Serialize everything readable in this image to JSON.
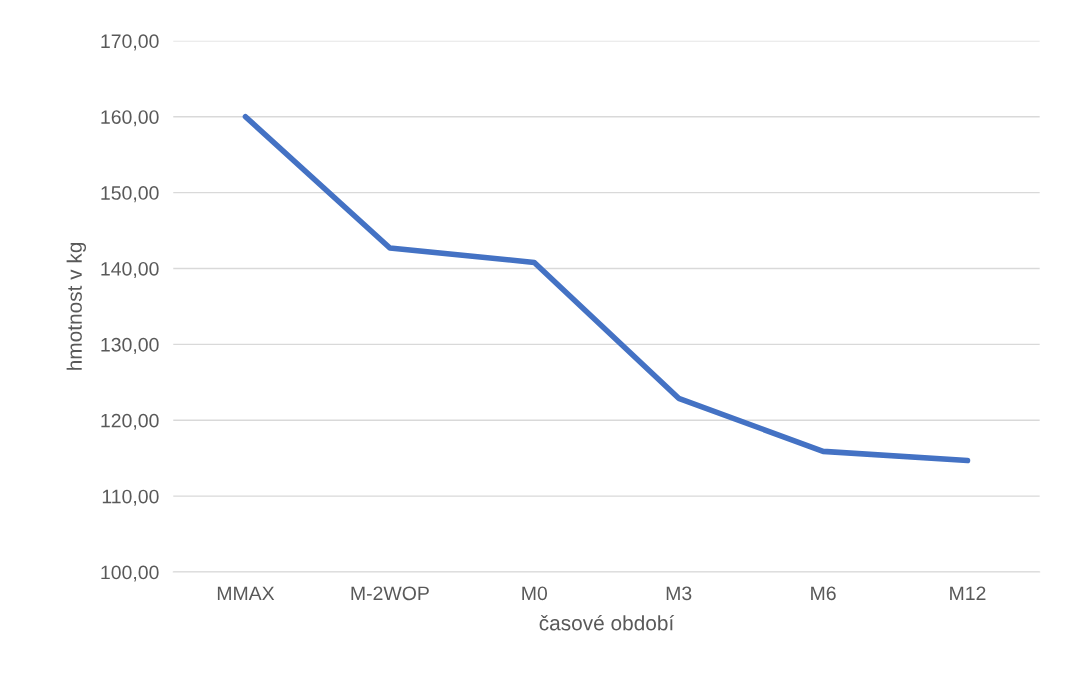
{
  "chart_data": {
    "type": "line",
    "xlabel": "časové období",
    "ylabel": "hmotnost v kg",
    "categories": [
      "MMAX",
      "M-2WOP",
      "M0",
      "M3",
      "M6",
      "M12"
    ],
    "series": [
      {
        "color": "#4472c4",
        "values": [
          160.0,
          142.7,
          140.8,
          122.9,
          115.9,
          114.7
        ]
      }
    ],
    "ylim": [
      100,
      170
    ],
    "yticks": [
      {
        "value": 100,
        "label": "100,00"
      },
      {
        "value": 110,
        "label": "110,00"
      },
      {
        "value": 120,
        "label": "120,00"
      },
      {
        "value": 130,
        "label": "130,00"
      },
      {
        "value": 140,
        "label": "140,00"
      },
      {
        "value": 150,
        "label": "150,00"
      },
      {
        "value": 160,
        "label": "160,00"
      },
      {
        "value": 170,
        "label": "170,00"
      }
    ],
    "grid": "y",
    "marker": "none",
    "line_style": "solid"
  }
}
